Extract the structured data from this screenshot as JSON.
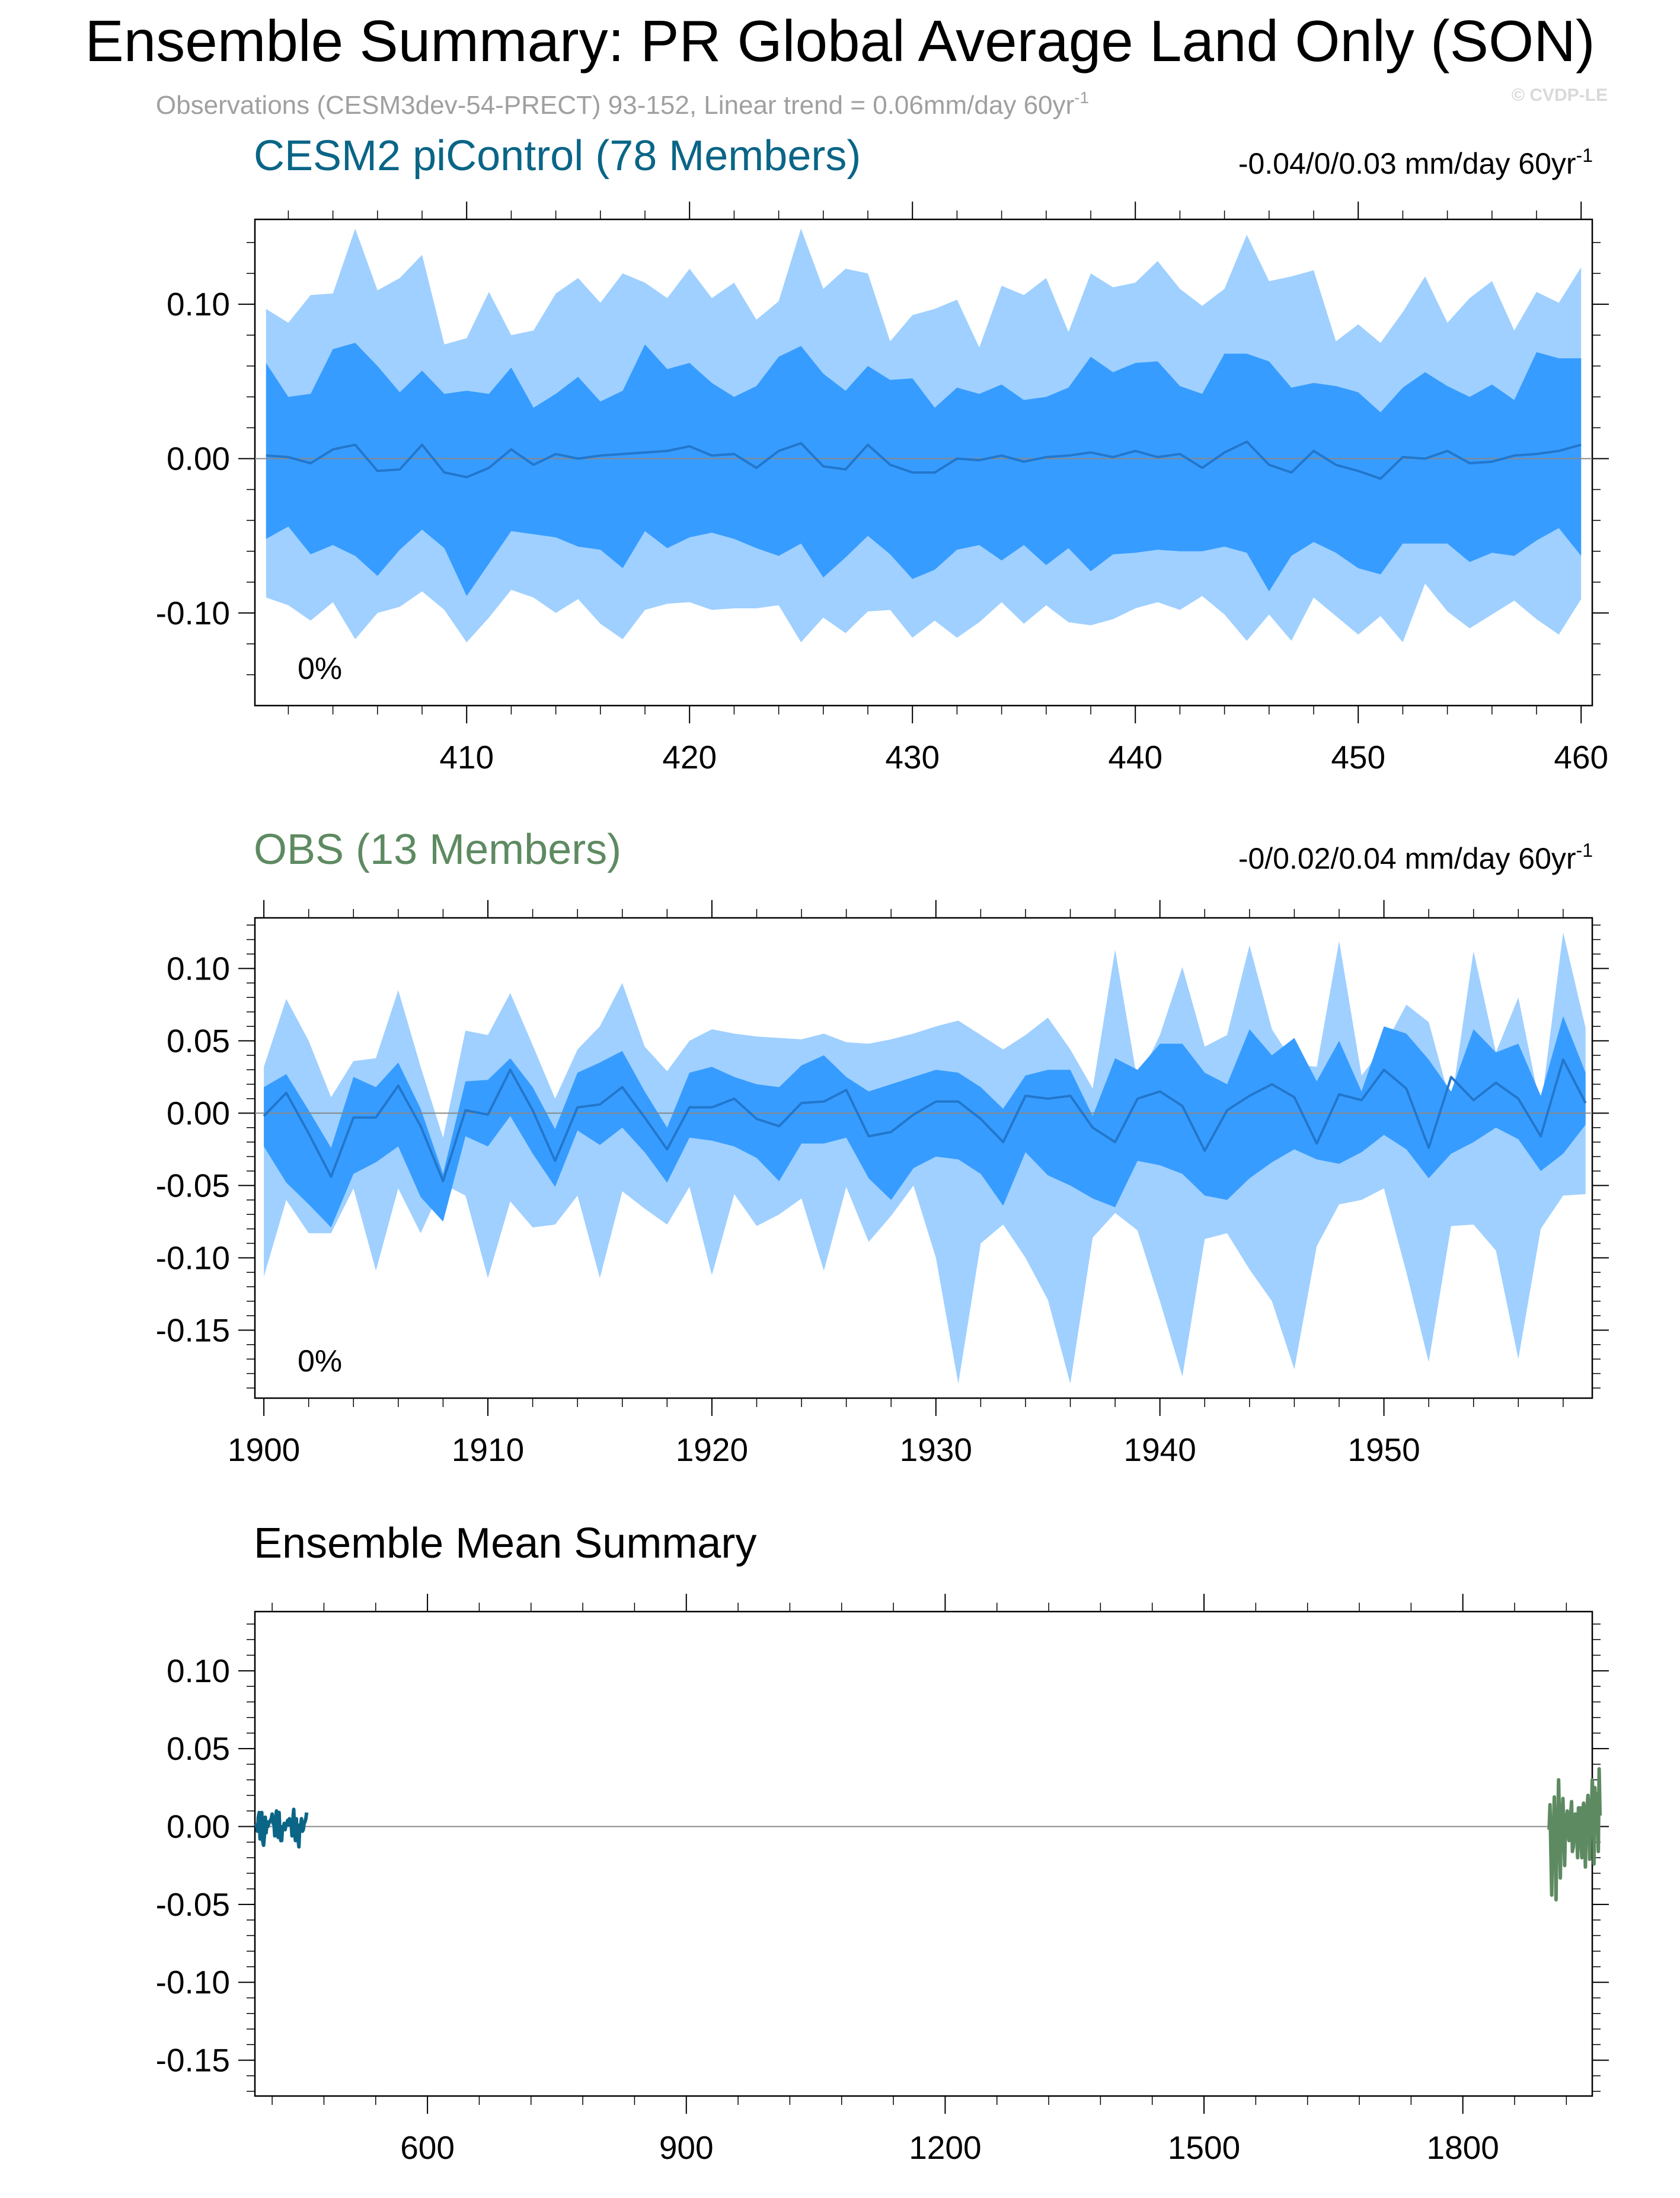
{
  "page": {
    "title": "Ensemble Summary: PR Global Average Land Only (SON)",
    "subtitle_main": "Observations (CESM3dev-54-PRECT) 93-152, Linear trend = 0.06mm/day 60yr",
    "subtitle_sup": "-1",
    "watermark": "© CVDP-LE"
  },
  "colors": {
    "outer_band": "#9fd0ff",
    "inner_band": "#379cff",
    "mean_line": "#2277cc",
    "cesm_title": "#0a6587",
    "obs_title": "#5e8a61",
    "axis": "#000000"
  },
  "chart_data": [
    {
      "type": "area",
      "title": "CESM2 piControl (78 Members)",
      "trend": "-0.04/0/0.03 mm/day 60yr",
      "trend_sup": "-1",
      "percent": "0%",
      "x": [
        401,
        402,
        403,
        404,
        405,
        406,
        407,
        408,
        409,
        410,
        411,
        412,
        413,
        414,
        415,
        416,
        417,
        418,
        419,
        420,
        421,
        422,
        423,
        424,
        425,
        426,
        427,
        428,
        429,
        430,
        431,
        432,
        433,
        434,
        435,
        436,
        437,
        438,
        439,
        440,
        441,
        442,
        443,
        444,
        445,
        446,
        447,
        448,
        449,
        450,
        451,
        452,
        453,
        454,
        455,
        456,
        457,
        458,
        459,
        460
      ],
      "xlim": [
        400.5,
        460.5
      ],
      "ylim": [
        -0.16,
        0.155
      ],
      "xticks": [
        410,
        420,
        430,
        440,
        450,
        460
      ],
      "xtick_labels": [
        "410",
        "420",
        "430",
        "440",
        "450",
        "460"
      ],
      "yticks": [
        0.1,
        0.0,
        -0.1
      ],
      "ytick_labels": [
        "0.10",
        "0.00",
        "-0.10"
      ],
      "outer_upper": [
        0.097,
        0.088,
        0.106,
        0.107,
        0.149,
        0.109,
        0.117,
        0.132,
        0.074,
        0.078,
        0.108,
        0.08,
        0.083,
        0.107,
        0.117,
        0.101,
        0.12,
        0.114,
        0.104,
        0.123,
        0.104,
        0.114,
        0.09,
        0.102,
        0.149,
        0.11,
        0.123,
        0.12,
        0.076,
        0.093,
        0.097,
        0.103,
        0.072,
        0.112,
        0.106,
        0.117,
        0.082,
        0.12,
        0.111,
        0.114,
        0.128,
        0.11,
        0.099,
        0.11,
        0.145,
        0.115,
        0.118,
        0.122,
        0.076,
        0.087,
        0.075,
        0.095,
        0.118,
        0.088,
        0.104,
        0.115,
        0.083,
        0.108,
        0.101,
        0.124
      ],
      "inner_upper": [
        0.062,
        0.04,
        0.042,
        0.071,
        0.075,
        0.06,
        0.043,
        0.057,
        0.042,
        0.044,
        0.042,
        0.059,
        0.033,
        0.042,
        0.053,
        0.037,
        0.044,
        0.074,
        0.058,
        0.062,
        0.049,
        0.04,
        0.047,
        0.066,
        0.073,
        0.055,
        0.044,
        0.06,
        0.051,
        0.052,
        0.033,
        0.046,
        0.042,
        0.048,
        0.038,
        0.04,
        0.046,
        0.066,
        0.056,
        0.062,
        0.063,
        0.047,
        0.042,
        0.068,
        0.068,
        0.063,
        0.046,
        0.049,
        0.047,
        0.043,
        0.03,
        0.046,
        0.056,
        0.047,
        0.04,
        0.048,
        0.038,
        0.069,
        0.065,
        0.065
      ],
      "mean": [
        0.002,
        0.001,
        -0.003,
        0.006,
        0.009,
        -0.008,
        -0.007,
        0.009,
        -0.009,
        -0.012,
        -0.006,
        0.006,
        -0.004,
        0.003,
        0.0,
        0.002,
        0.003,
        0.004,
        0.005,
        0.008,
        0.002,
        0.003,
        -0.006,
        0.005,
        0.01,
        -0.005,
        -0.007,
        0.009,
        -0.004,
        -0.009,
        -0.009,
        0.0,
        -0.001,
        0.002,
        -0.002,
        0.001,
        0.002,
        0.004,
        0.001,
        0.005,
        0.001,
        0.003,
        -0.006,
        0.004,
        0.011,
        -0.004,
        -0.009,
        0.005,
        -0.004,
        -0.008,
        -0.013,
        0.001,
        0.0,
        0.005,
        -0.003,
        -0.002,
        0.002,
        0.003,
        0.005,
        0.009
      ],
      "inner_lower": [
        -0.052,
        -0.044,
        -0.062,
        -0.056,
        -0.063,
        -0.076,
        -0.059,
        -0.046,
        -0.058,
        -0.089,
        -0.068,
        -0.047,
        -0.049,
        -0.051,
        -0.057,
        -0.059,
        -0.071,
        -0.047,
        -0.058,
        -0.051,
        -0.048,
        -0.052,
        -0.058,
        -0.063,
        -0.055,
        -0.077,
        -0.064,
        -0.05,
        -0.062,
        -0.078,
        -0.072,
        -0.059,
        -0.056,
        -0.066,
        -0.056,
        -0.069,
        -0.058,
        -0.073,
        -0.062,
        -0.061,
        -0.059,
        -0.06,
        -0.06,
        -0.057,
        -0.061,
        -0.086,
        -0.063,
        -0.054,
        -0.061,
        -0.071,
        -0.075,
        -0.055,
        -0.055,
        -0.055,
        -0.067,
        -0.061,
        -0.063,
        -0.053,
        -0.045,
        -0.063
      ],
      "outer_lower": [
        -0.09,
        -0.095,
        -0.105,
        -0.093,
        -0.117,
        -0.1,
        -0.096,
        -0.086,
        -0.098,
        -0.119,
        -0.103,
        -0.085,
        -0.09,
        -0.1,
        -0.091,
        -0.107,
        -0.117,
        -0.098,
        -0.094,
        -0.093,
        -0.098,
        -0.097,
        -0.097,
        -0.095,
        -0.119,
        -0.103,
        -0.113,
        -0.099,
        -0.098,
        -0.116,
        -0.105,
        -0.116,
        -0.106,
        -0.093,
        -0.107,
        -0.095,
        -0.106,
        -0.108,
        -0.104,
        -0.097,
        -0.093,
        -0.098,
        -0.089,
        -0.101,
        -0.118,
        -0.101,
        -0.118,
        -0.09,
        -0.102,
        -0.114,
        -0.102,
        -0.119,
        -0.081,
        -0.099,
        -0.11,
        -0.101,
        -0.092,
        -0.104,
        -0.114,
        -0.091
      ]
    },
    {
      "type": "area",
      "title": "OBS (13 Members)",
      "trend": "-0/0.02/0.04 mm/day 60yr",
      "trend_sup": "-1",
      "percent": "0%",
      "x": [
        1900,
        1901,
        1902,
        1903,
        1904,
        1905,
        1906,
        1907,
        1908,
        1909,
        1910,
        1911,
        1912,
        1913,
        1914,
        1915,
        1916,
        1917,
        1918,
        1919,
        1920,
        1921,
        1922,
        1923,
        1924,
        1925,
        1926,
        1927,
        1928,
        1929,
        1930,
        1931,
        1932,
        1933,
        1934,
        1935,
        1936,
        1937,
        1938,
        1939,
        1940,
        1941,
        1942,
        1943,
        1944,
        1945,
        1946,
        1947,
        1948,
        1949,
        1950,
        1951,
        1952,
        1953,
        1954,
        1955,
        1956,
        1957,
        1958,
        1959
      ],
      "xlim": [
        1899.6,
        1959.3
      ],
      "ylim": [
        -0.197,
        0.135
      ],
      "xticks": [
        1900,
        1910,
        1920,
        1930,
        1940,
        1950
      ],
      "xtick_labels": [
        "1900",
        "1910",
        "1920",
        "1930",
        "1940",
        "1950"
      ],
      "yticks": [
        0.1,
        0.05,
        0.0,
        -0.05,
        -0.1,
        -0.15
      ],
      "ytick_labels": [
        "0.10",
        "0.05",
        "0.00",
        "-0.05",
        "-0.10",
        "-0.15"
      ],
      "outer_upper": [
        0.032,
        0.079,
        0.05,
        0.011,
        0.036,
        0.038,
        0.085,
        0.032,
        -0.017,
        0.057,
        0.054,
        0.083,
        0.047,
        0.01,
        0.044,
        0.06,
        0.09,
        0.046,
        0.029,
        0.05,
        0.058,
        0.055,
        0.053,
        0.052,
        0.051,
        0.055,
        0.049,
        0.048,
        0.051,
        0.055,
        0.06,
        0.064,
        0.054,
        0.044,
        0.054,
        0.066,
        0.044,
        0.017,
        0.113,
        0.022,
        0.054,
        0.101,
        0.046,
        0.054,
        0.116,
        0.058,
        0.034,
        0.032,
        0.119,
        0.026,
        0.046,
        0.075,
        0.063,
        0.006,
        0.112,
        0.042,
        0.08,
        0.003,
        0.125,
        0.059
      ],
      "inner_upper": [
        0.018,
        0.027,
        0.002,
        -0.024,
        0.025,
        0.018,
        0.035,
        0.003,
        -0.042,
        0.022,
        0.023,
        0.038,
        0.018,
        -0.011,
        0.028,
        0.035,
        0.043,
        0.015,
        -0.01,
        0.028,
        0.032,
        0.025,
        0.02,
        0.018,
        0.033,
        0.04,
        0.025,
        0.015,
        0.02,
        0.025,
        0.03,
        0.028,
        0.018,
        0.003,
        0.026,
        0.03,
        0.03,
        -0.002,
        0.038,
        0.03,
        0.048,
        0.048,
        0.028,
        0.02,
        0.058,
        0.04,
        0.052,
        0.022,
        0.05,
        0.015,
        0.06,
        0.055,
        0.037,
        0.015,
        0.058,
        0.042,
        0.048,
        0.012,
        0.067,
        0.028
      ],
      "mean": [
        -0.002,
        0.014,
        -0.014,
        -0.044,
        -0.003,
        -0.003,
        0.019,
        -0.009,
        -0.047,
        0.002,
        -0.001,
        0.03,
        0.002,
        -0.033,
        0.004,
        0.006,
        0.018,
        -0.003,
        -0.025,
        0.004,
        0.004,
        0.01,
        -0.004,
        -0.009,
        0.007,
        0.008,
        0.016,
        -0.016,
        -0.013,
        -0.001,
        0.008,
        0.008,
        -0.004,
        -0.02,
        0.012,
        0.01,
        0.012,
        -0.01,
        -0.02,
        0.01,
        0.015,
        0.005,
        -0.026,
        0.002,
        0.012,
        0.02,
        0.011,
        -0.021,
        0.013,
        0.009,
        0.03,
        0.017,
        -0.024,
        0.025,
        0.009,
        0.021,
        0.01,
        -0.016,
        0.037,
        0.007
      ],
      "inner_lower": [
        -0.023,
        -0.048,
        -0.063,
        -0.079,
        -0.042,
        -0.034,
        -0.023,
        -0.058,
        -0.075,
        -0.016,
        -0.023,
        -0.002,
        -0.028,
        -0.051,
        -0.012,
        -0.022,
        -0.01,
        -0.027,
        -0.048,
        -0.017,
        -0.019,
        -0.023,
        -0.031,
        -0.047,
        -0.021,
        -0.021,
        -0.017,
        -0.045,
        -0.06,
        -0.038,
        -0.03,
        -0.032,
        -0.042,
        -0.064,
        -0.027,
        -0.043,
        -0.05,
        -0.059,
        -0.065,
        -0.033,
        -0.036,
        -0.042,
        -0.057,
        -0.06,
        -0.045,
        -0.034,
        -0.025,
        -0.032,
        -0.035,
        -0.027,
        -0.015,
        -0.025,
        -0.045,
        -0.028,
        -0.02,
        -0.01,
        -0.018,
        -0.04,
        -0.028,
        -0.008
      ],
      "outer_lower": [
        -0.113,
        -0.06,
        -0.083,
        -0.083,
        -0.052,
        -0.109,
        -0.052,
        -0.083,
        -0.049,
        -0.057,
        -0.114,
        -0.061,
        -0.079,
        -0.077,
        -0.057,
        -0.114,
        -0.054,
        -0.066,
        -0.077,
        -0.051,
        -0.112,
        -0.056,
        -0.078,
        -0.07,
        -0.059,
        -0.109,
        -0.051,
        -0.089,
        -0.071,
        -0.05,
        -0.1,
        -0.187,
        -0.09,
        -0.077,
        -0.1,
        -0.129,
        -0.187,
        -0.086,
        -0.069,
        -0.081,
        -0.13,
        -0.182,
        -0.087,
        -0.083,
        -0.108,
        -0.13,
        -0.177,
        -0.092,
        -0.063,
        -0.06,
        -0.052,
        -0.11,
        -0.172,
        -0.078,
        -0.077,
        -0.095,
        -0.17,
        -0.08,
        -0.057,
        -0.056
      ]
    },
    {
      "type": "line",
      "title": "Ensemble Mean Summary",
      "xlim": [
        400,
        1950
      ],
      "ylim": [
        -0.173,
        0.138
      ],
      "xticks": [
        600,
        900,
        1200,
        1500,
        1800
      ],
      "xtick_labels": [
        "600",
        "900",
        "1200",
        "1500",
        "1800"
      ],
      "yticks": [
        0.1,
        0.05,
        0.0,
        -0.05,
        -0.1,
        -0.15
      ],
      "ytick_labels": [
        "0.10",
        "0.05",
        "0.00",
        "-0.05",
        "-0.10",
        "-0.15"
      ],
      "series": [
        {
          "color": "#0a6587",
          "source": 0
        },
        {
          "color": "#5e8a61",
          "source": 1
        }
      ]
    }
  ]
}
